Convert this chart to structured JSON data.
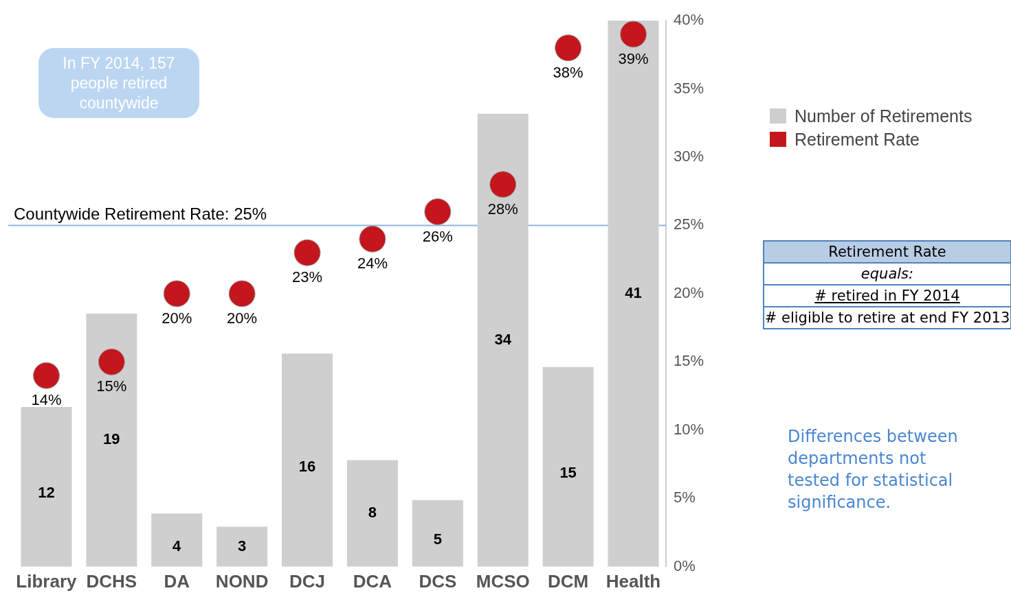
{
  "chart_data": {
    "type": "bar",
    "categories": [
      "Library",
      "DCHS",
      "DA",
      "NOND",
      "DCJ",
      "DCA",
      "DCS",
      "MCSO",
      "DCM",
      "Health"
    ],
    "series": [
      {
        "name": "Number of Retirements",
        "color": "#cfcfcf",
        "values": [
          12,
          19,
          4,
          3,
          16,
          8,
          5,
          34,
          15,
          41
        ],
        "data_labels": true
      },
      {
        "name": "Retirement Rate",
        "type": "scatter",
        "axis": "y2",
        "color": "#c4161c",
        "values": [
          14,
          15,
          20,
          20,
          23,
          24,
          26,
          28,
          38,
          39
        ],
        "value_labels": [
          "14%",
          "15%",
          "20%",
          "20%",
          "23%",
          "24%",
          "26%",
          "28%",
          "38%",
          "39%"
        ]
      }
    ],
    "y2lim": [
      0,
      40
    ],
    "y2ticks": [
      {
        "value": 0,
        "label": "0%"
      },
      {
        "value": 5,
        "label": "5%"
      },
      {
        "value": 10,
        "label": "10%"
      },
      {
        "value": 15,
        "label": "15%"
      },
      {
        "value": 20,
        "label": "20%"
      },
      {
        "value": 25,
        "label": "25%"
      },
      {
        "value": 30,
        "label": "30%"
      },
      {
        "value": 35,
        "label": "35%"
      },
      {
        "value": 40,
        "label": "40%"
      }
    ],
    "ref_lines": [
      {
        "axis": "y2",
        "value": 25,
        "label": "Countywide Retirement Rate: 25%",
        "color": "#8fb4e3"
      }
    ],
    "annotations": [
      "In FY 2014, 157 people retired countywide",
      "Retirement Rate",
      "equals:",
      "# retired in FY 2014",
      "# eligible to retire at end FY 2013",
      "Differences between departments not tested for statistical significance."
    ],
    "legend": "right",
    "grid": false,
    "marker": "circle"
  }
}
